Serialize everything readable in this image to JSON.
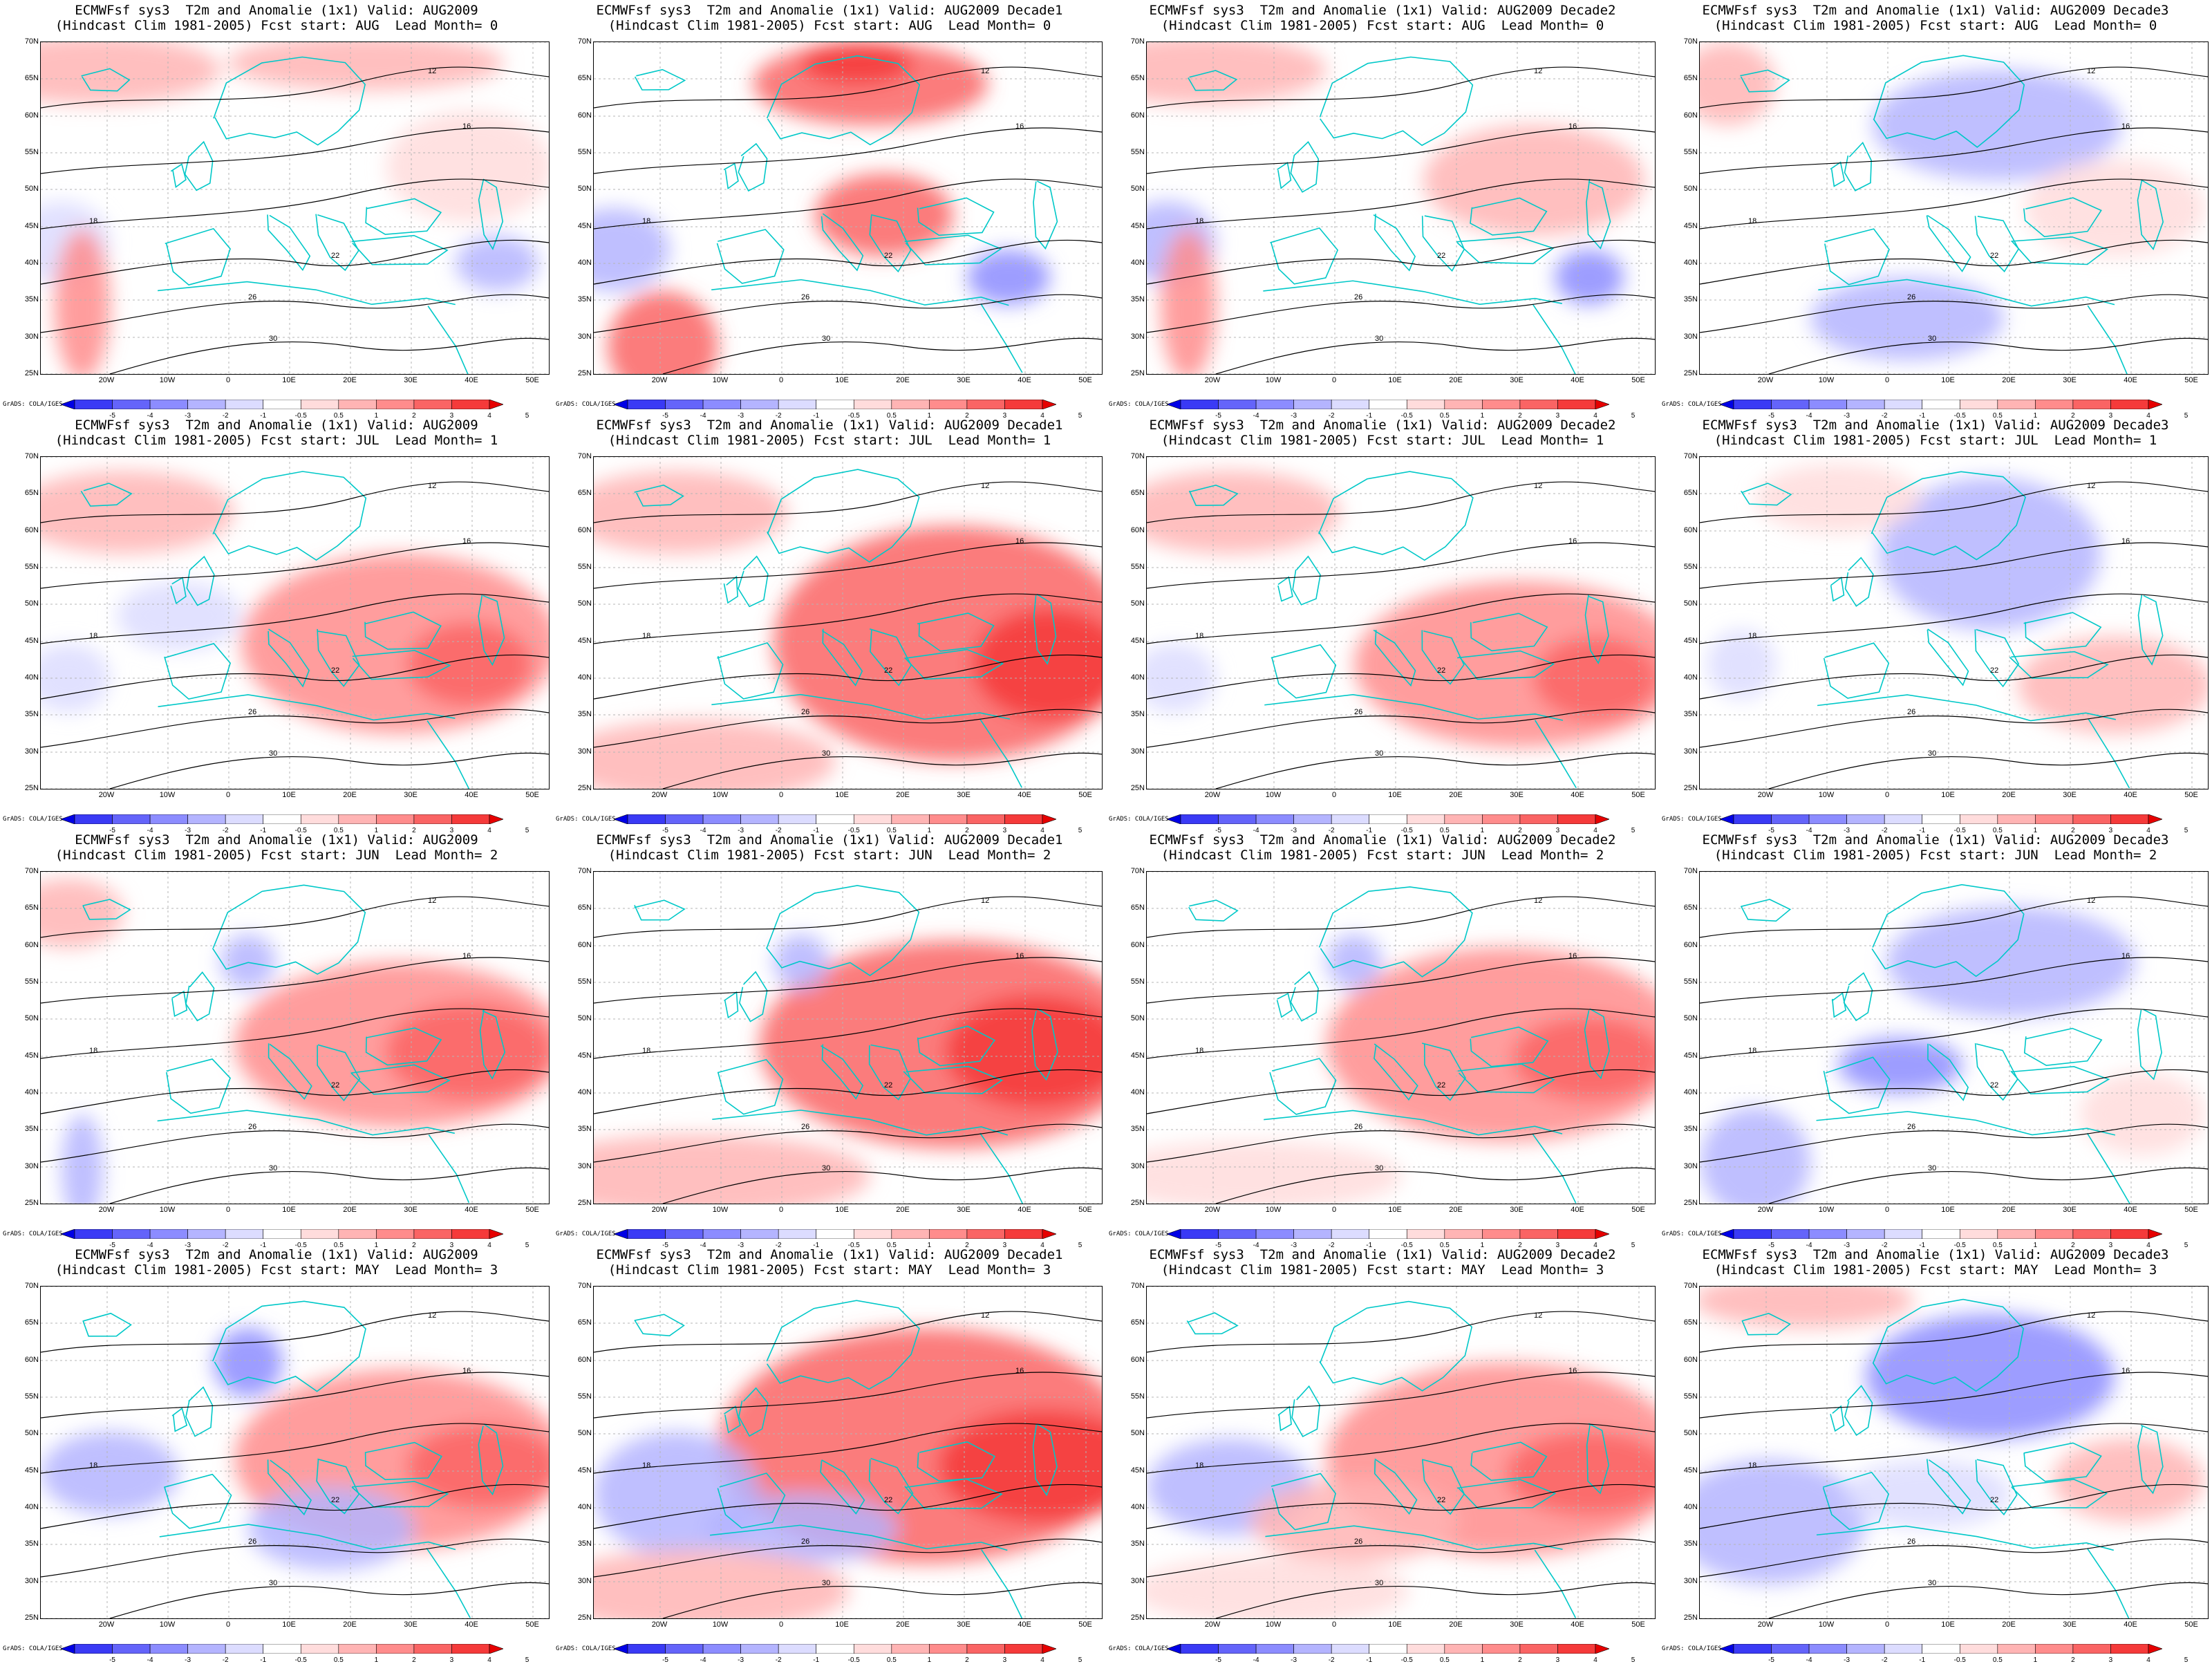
{
  "panels": [
    {
      "title1": "ECMWFsf sys3  T2m and Anomalie (1x1) Valid: AUG2009",
      "title2": "(Hindcast Clim 1981-2005) Fcst start: AUG  Lead Month= 0"
    },
    {
      "title1": "ECMWFsf sys3  T2m and Anomalie (1x1) Valid: AUG2009 Decade1",
      "title2": "(Hindcast Clim 1981-2005) Fcst start: AUG  Lead Month= 0"
    },
    {
      "title1": "ECMWFsf sys3  T2m and Anomalie (1x1) Valid: AUG2009 Decade2",
      "title2": "(Hindcast Clim 1981-2005) Fcst start: AUG  Lead Month= 0"
    },
    {
      "title1": "ECMWFsf sys3  T2m and Anomalie (1x1) Valid: AUG2009 Decade3",
      "title2": "(Hindcast Clim 1981-2005) Fcst start: AUG  Lead Month= 0"
    },
    {
      "title1": "ECMWFsf sys3  T2m and Anomalie (1x1) Valid: AUG2009",
      "title2": "(Hindcast Clim 1981-2005) Fcst start: JUL  Lead Month= 1"
    },
    {
      "title1": "ECMWFsf sys3  T2m and Anomalie (1x1) Valid: AUG2009 Decade1",
      "title2": "(Hindcast Clim 1981-2005) Fcst start: JUL  Lead Month= 1"
    },
    {
      "title1": "ECMWFsf sys3  T2m and Anomalie (1x1) Valid: AUG2009 Decade2",
      "title2": "(Hindcast Clim 1981-2005) Fcst start: JUL  Lead Month= 1"
    },
    {
      "title1": "ECMWFsf sys3  T2m and Anomalie (1x1) Valid: AUG2009 Decade3",
      "title2": "(Hindcast Clim 1981-2005) Fcst start: JUL  Lead Month= 1"
    },
    {
      "title1": "ECMWFsf sys3  T2m and Anomalie (1x1) Valid: AUG2009",
      "title2": "(Hindcast Clim 1981-2005) Fcst start: JUN  Lead Month= 2"
    },
    {
      "title1": "ECMWFsf sys3  T2m and Anomalie (1x1) Valid: AUG2009 Decade1",
      "title2": "(Hindcast Clim 1981-2005) Fcst start: JUN  Lead Month= 2"
    },
    {
      "title1": "ECMWFsf sys3  T2m and Anomalie (1x1) Valid: AUG2009 Decade2",
      "title2": "(Hindcast Clim 1981-2005) Fcst start: JUN  Lead Month= 2"
    },
    {
      "title1": "ECMWFsf sys3  T2m and Anomalie (1x1) Valid: AUG2009 Decade3",
      "title2": "(Hindcast Clim 1981-2005) Fcst start: JUN  Lead Month= 2"
    },
    {
      "title1": "ECMWFsf sys3  T2m and Anomalie (1x1) Valid: AUG2009",
      "title2": "(Hindcast Clim 1981-2005) Fcst start: MAY  Lead Month= 3"
    },
    {
      "title1": "ECMWFsf sys3  T2m and Anomalie (1x1) Valid: AUG2009 Decade1",
      "title2": "(Hindcast Clim 1981-2005) Fcst start: MAY  Lead Month= 3"
    },
    {
      "title1": "ECMWFsf sys3  T2m and Anomalie (1x1) Valid: AUG2009 Decade2",
      "title2": "(Hindcast Clim 1981-2005) Fcst start: MAY  Lead Month= 3"
    },
    {
      "title1": "ECMWFsf sys3  T2m and Anomalie (1x1) Valid: AUG2009 Decade3",
      "title2": "(Hindcast Clim 1981-2005) Fcst start: MAY  Lead Month= 3"
    }
  ],
  "latitude_labels": [
    "70N",
    "65N",
    "60N",
    "55N",
    "50N",
    "45N",
    "40N",
    "35N",
    "30N",
    "25N"
  ],
  "longitude_labels": [
    "20W",
    "10W",
    "0",
    "10E",
    "20E",
    "30E",
    "40E",
    "50E"
  ],
  "colorbar": {
    "labels": [
      "-5",
      "-4",
      "-3",
      "-2",
      "-1",
      "-0.5",
      "0.5",
      "1",
      "2",
      "3",
      "4",
      "5"
    ],
    "colors": [
      "#0000e6",
      "#3a3af5",
      "#6464fa",
      "#8c8cff",
      "#b4b4ff",
      "#dcdcff",
      "#ffffff",
      "#ffdcdc",
      "#ffb4b4",
      "#ff8c8c",
      "#fa6464",
      "#f53a3a",
      "#e60000"
    ],
    "credit": "GrADS: COLA/IGES"
  },
  "contour_labels": [
    "12",
    "16",
    "18",
    "22",
    "26",
    "30"
  ],
  "colors": {
    "coast": "#00c8c8",
    "contour": "#000000",
    "grid": "#b4b4b4"
  }
}
